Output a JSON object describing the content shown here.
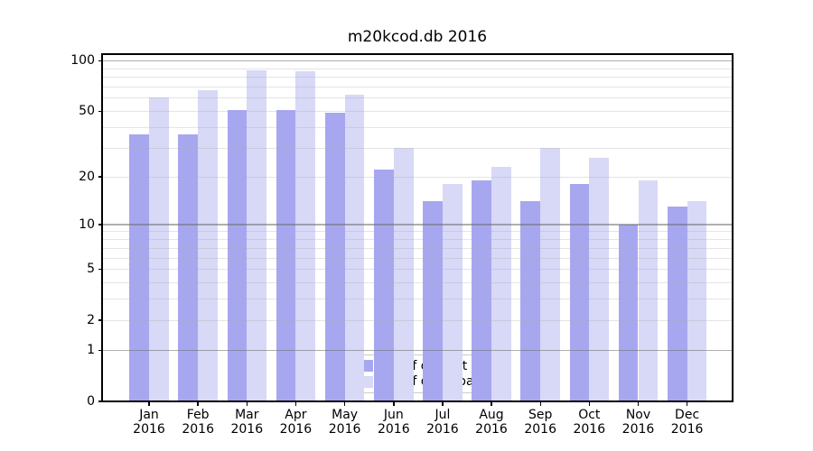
{
  "chart_data": {
    "type": "bar",
    "title": "m20kcod.db 2016",
    "categories": [
      "Jan",
      "Feb",
      "Mar",
      "Apr",
      "May",
      "Jun",
      "Jul",
      "Aug",
      "Sep",
      "Oct",
      "Nov",
      "Dec"
    ],
    "year_label": "2016",
    "series": [
      {
        "name": "Nb of distinct IPs",
        "color": "#a7a7f0",
        "values": [
          36,
          36,
          51,
          51,
          49,
          22,
          14,
          19,
          14,
          18,
          10,
          13
        ]
      },
      {
        "name": "Nb of downloads",
        "color": "#d8d8f7",
        "values": [
          60,
          67,
          88,
          86,
          63,
          30,
          18,
          23,
          30,
          26,
          19,
          14
        ]
      }
    ],
    "xlabel": "",
    "ylabel": "",
    "yscale": "log1p",
    "ylim": [
      0,
      109
    ],
    "ytick_values": [
      100,
      50,
      20,
      10,
      5,
      2,
      1,
      0
    ],
    "ytick_labels": [
      "100",
      "50",
      "20",
      "10",
      "5",
      "2",
      "1",
      "0"
    ],
    "minor_gridlines": [
      2,
      3,
      4,
      5,
      6,
      7,
      8,
      9,
      20,
      30,
      40,
      50,
      60,
      70,
      80,
      90
    ],
    "major_gridlines": [
      1,
      10,
      100
    ],
    "grid": "on",
    "legend": {
      "position": "lower center",
      "entries": [
        "Nb of distinct IPs",
        "Nb of downloads"
      ]
    }
  },
  "colors": {
    "background": "#ffffff",
    "axis": "#000000",
    "grid_minor": "rgba(170,170,170,0.32)",
    "grid_major": "rgba(110,110,110,0.55)",
    "legend_border": "#cccccc",
    "bar_distinct_ips": "#a7a7f0",
    "bar_downloads": "#d8d8f7"
  }
}
